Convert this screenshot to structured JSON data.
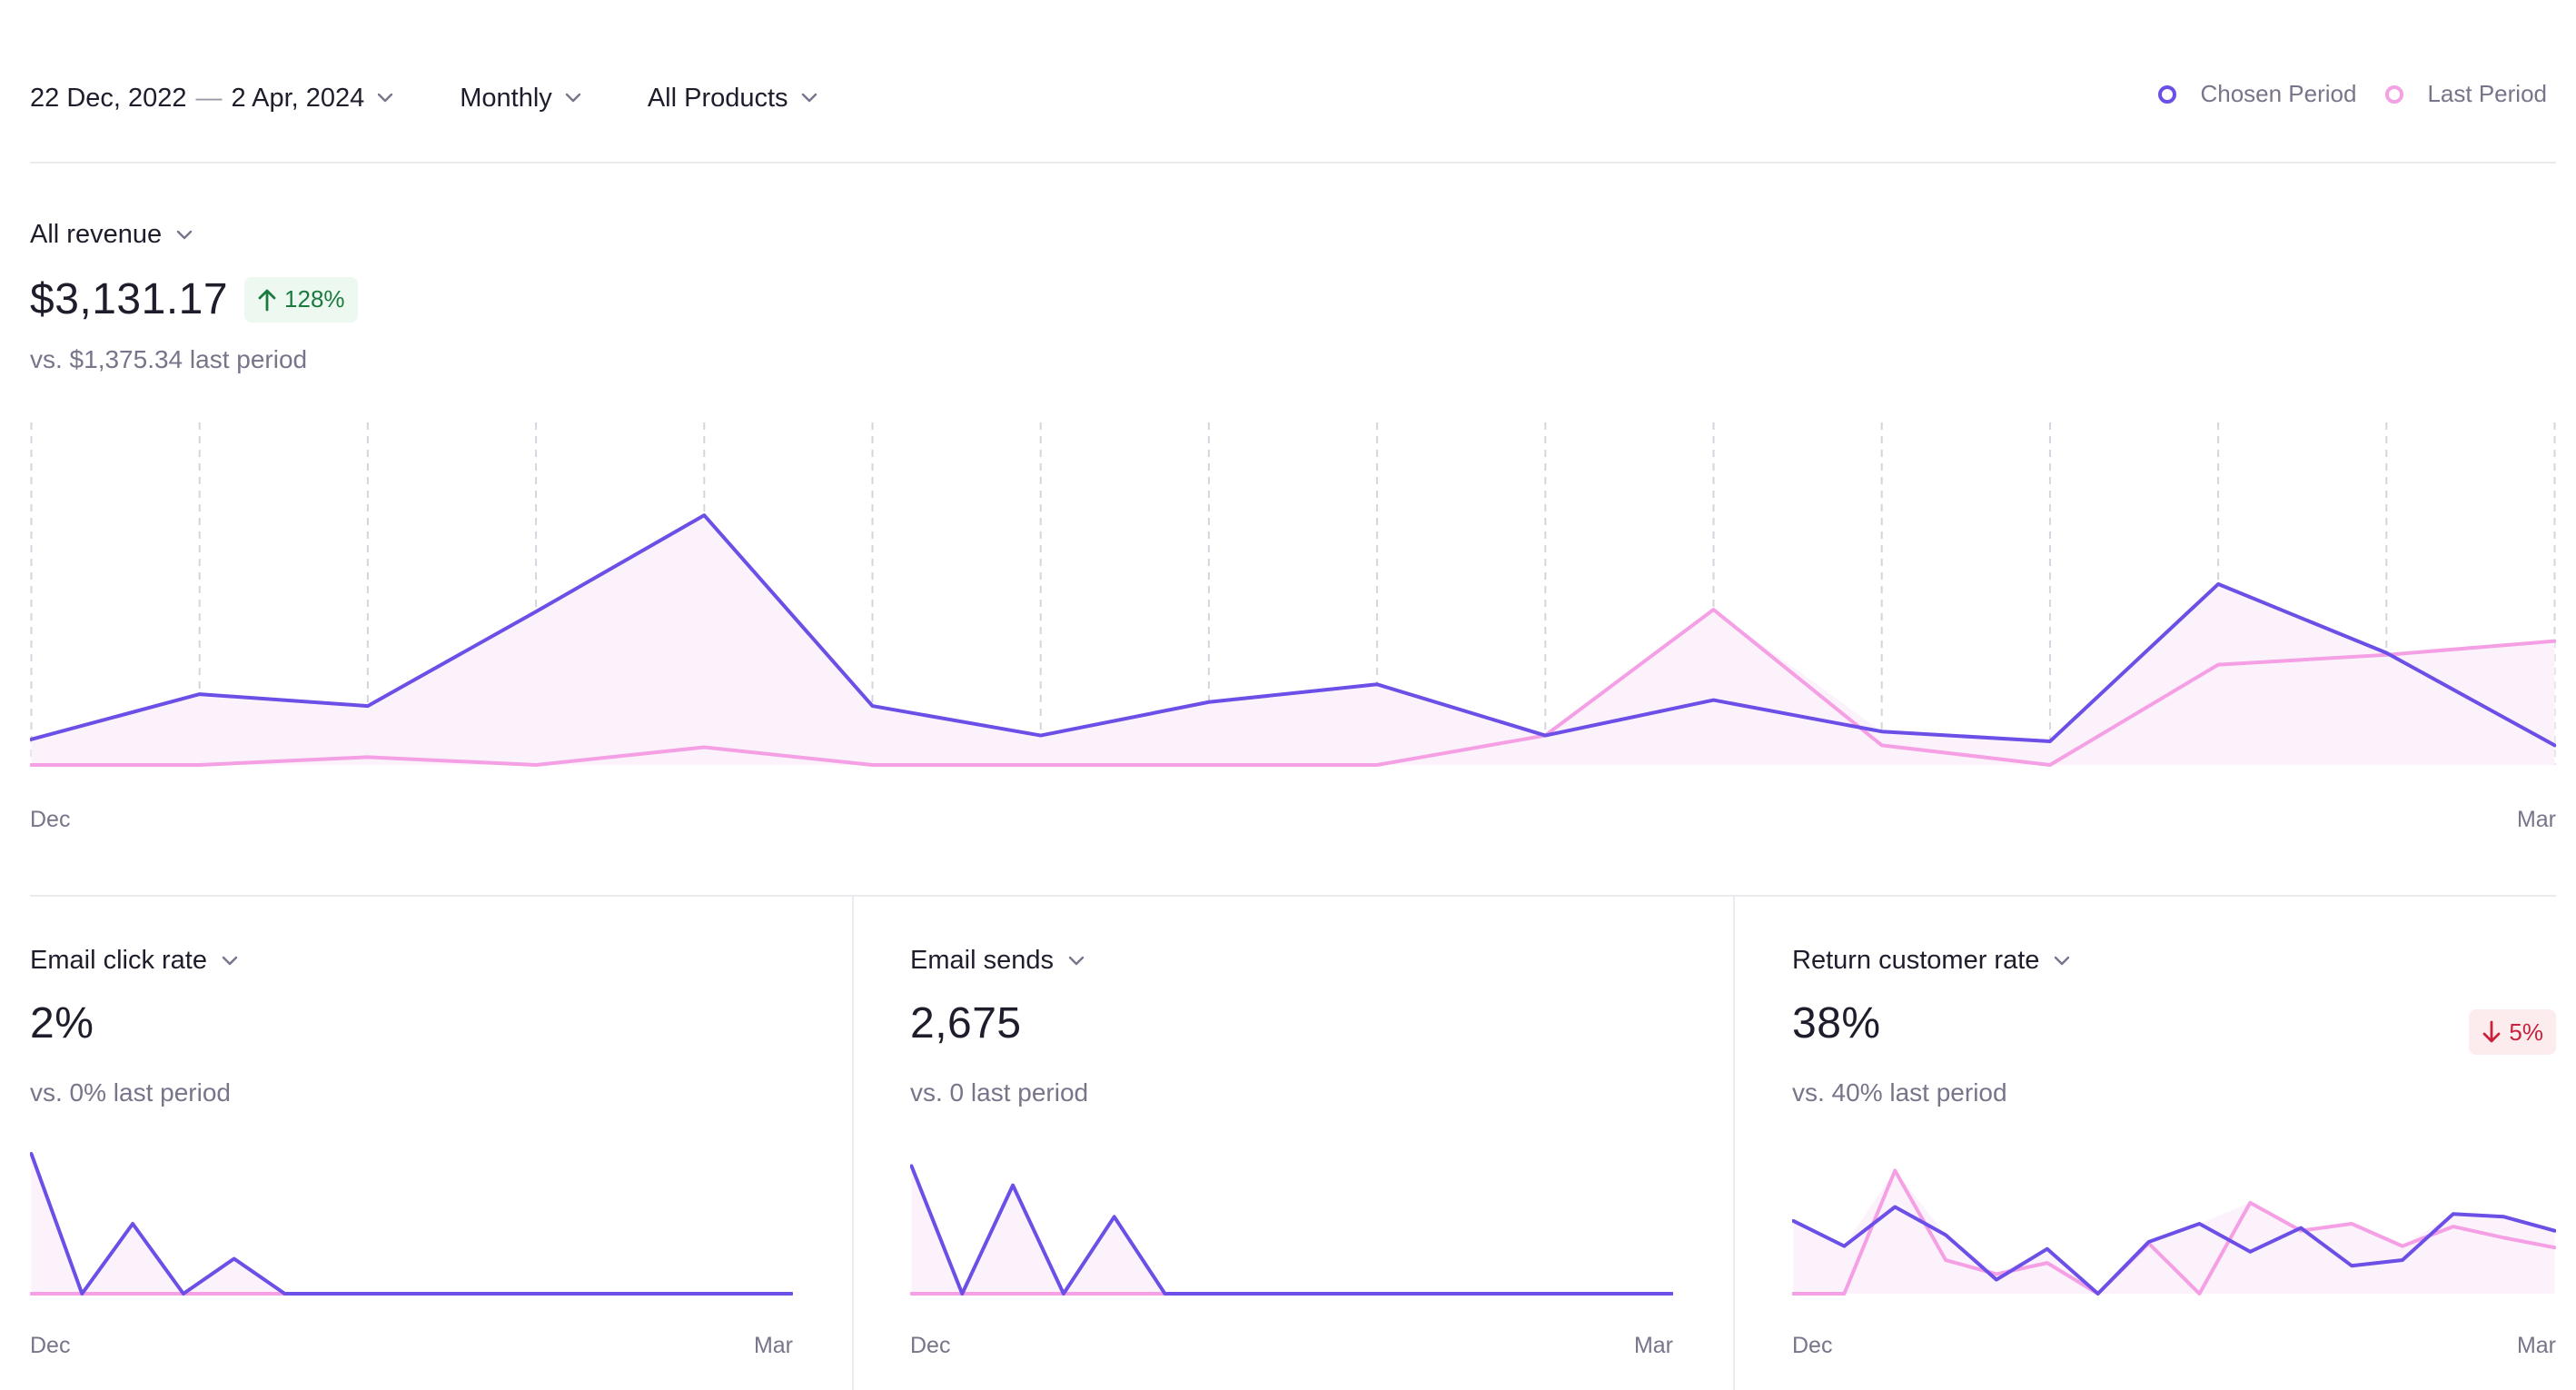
{
  "filters": {
    "date_start": "22 Dec, 2022",
    "date_sep": "—",
    "date_end": "2 Apr, 2024",
    "interval": "Monthly",
    "products": "All Products"
  },
  "legend": {
    "chosen_label": "Chosen Period",
    "last_label": "Last Period",
    "chosen_color": "#6b4fe6",
    "last_color": "#f59fe4"
  },
  "main_metric": {
    "title": "All revenue",
    "value": "$3,131.17",
    "change": "128%",
    "comparison": "vs. $1,375.34 last period",
    "x_start": "Dec",
    "x_end": "Mar"
  },
  "panels": [
    {
      "title": "Email click rate",
      "value": "2%",
      "comparison": "vs. 0% last period",
      "change": "",
      "x_start": "Dec",
      "x_end": "Mar"
    },
    {
      "title": "Email sends",
      "value": "2,675",
      "comparison": "vs. 0 last period",
      "change": "",
      "x_start": "Dec",
      "x_end": "Mar"
    },
    {
      "title": "Return customer rate",
      "value": "38%",
      "comparison": "vs. 40% last period",
      "change": "5%",
      "x_start": "Dec",
      "x_end": "Mar"
    }
  ],
  "chart_data": [
    {
      "type": "line",
      "title": "All revenue",
      "x_labels": [
        "Dec",
        "Mar"
      ],
      "series": [
        {
          "name": "Chosen Period",
          "values": [
            65,
            180,
            150,
            390,
            635,
            150,
            75,
            160,
            205,
            75,
            165,
            85,
            60,
            460,
            285,
            50
          ]
        },
        {
          "name": "Last Period",
          "values": [
            0,
            0,
            20,
            0,
            45,
            0,
            0,
            0,
            0,
            75,
            395,
            50,
            0,
            255,
            280,
            315
          ]
        }
      ],
      "ylim": [
        0,
        640
      ],
      "grid": "vertical-dashed"
    },
    {
      "type": "line",
      "title": "Email click rate",
      "x_labels": [
        "Dec",
        "Mar"
      ],
      "series": [
        {
          "name": "Chosen Period",
          "values": [
            10,
            0,
            5,
            0,
            2.5,
            0,
            0,
            0,
            0,
            0,
            0,
            0,
            0,
            0,
            0,
            0
          ]
        },
        {
          "name": "Last Period",
          "values": [
            0,
            0,
            0,
            0,
            0,
            0,
            0,
            0,
            0,
            0,
            0,
            0,
            0,
            0,
            0,
            0
          ]
        }
      ],
      "ylim": [
        0,
        10
      ]
    },
    {
      "type": "line",
      "title": "Email sends",
      "x_labels": [
        "Dec",
        "Mar"
      ],
      "series": [
        {
          "name": "Chosen Period",
          "values": [
            73,
            0,
            62,
            0,
            44,
            0,
            0,
            0,
            0,
            0,
            0,
            0,
            0,
            0,
            0,
            0
          ]
        },
        {
          "name": "Last Period",
          "values": [
            0,
            0,
            0,
            0,
            0,
            0,
            0,
            0,
            0,
            0,
            0,
            0,
            0,
            0,
            0,
            0
          ]
        }
      ],
      "ylim": [
        0,
        80
      ]
    },
    {
      "type": "line",
      "title": "Return customer rate",
      "x_labels": [
        "Dec",
        "Mar"
      ],
      "series": [
        {
          "name": "Chosen Period",
          "values": [
            52,
            34,
            62,
            42,
            10,
            32,
            0,
            37,
            50,
            30,
            47,
            20,
            24,
            57,
            55,
            45
          ]
        },
        {
          "name": "Last Period",
          "values": [
            0,
            0,
            88,
            24,
            14,
            22,
            0,
            36,
            0,
            65,
            45,
            50,
            34,
            48,
            40,
            33
          ]
        }
      ],
      "ylim": [
        0,
        100
      ]
    }
  ]
}
